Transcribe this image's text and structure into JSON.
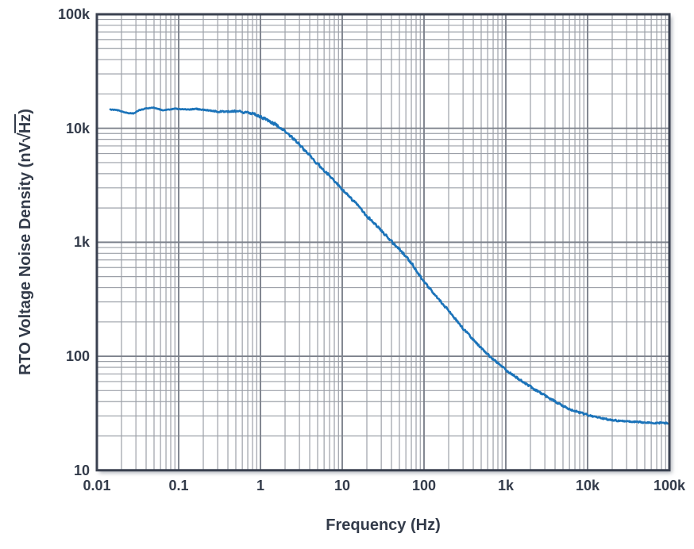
{
  "chart_data": {
    "type": "line",
    "title": "",
    "xlabel": "Frequency (Hz)",
    "ylabel": "RTO Voltage Noise Density (nV√Hz)",
    "ylabel_parts": {
      "prefix": "RTO Voltage Noise Density (nV",
      "radicand": "Hz",
      "suffix": ")"
    },
    "x_scale": "log",
    "y_scale": "log",
    "xlim": [
      0.01,
      100000
    ],
    "ylim": [
      10,
      100000
    ],
    "grid": {
      "major": true,
      "minor": true
    },
    "legend": "none",
    "x_ticks": [
      {
        "value": 0.01,
        "label": "0.01"
      },
      {
        "value": 0.1,
        "label": "0.1"
      },
      {
        "value": 1,
        "label": "1"
      },
      {
        "value": 10,
        "label": "10"
      },
      {
        "value": 100,
        "label": "100"
      },
      {
        "value": 1000,
        "label": "1k"
      },
      {
        "value": 10000,
        "label": "10k"
      },
      {
        "value": 100000,
        "label": "100k"
      }
    ],
    "y_ticks": [
      {
        "value": 10,
        "label": "10"
      },
      {
        "value": 100,
        "label": "100"
      },
      {
        "value": 1000,
        "label": "1k"
      },
      {
        "value": 10000,
        "label": "10k"
      },
      {
        "value": 100000,
        "label": "100k"
      }
    ],
    "series": [
      {
        "name": "RTO voltage noise density",
        "color": "#1b73b9",
        "points": [
          [
            0.0146,
            14600
          ],
          [
            0.017,
            14500
          ],
          [
            0.02,
            14100
          ],
          [
            0.024,
            13600
          ],
          [
            0.028,
            13500
          ],
          [
            0.033,
            14400
          ],
          [
            0.04,
            14900
          ],
          [
            0.048,
            15200
          ],
          [
            0.055,
            14800
          ],
          [
            0.065,
            14400
          ],
          [
            0.075,
            14600
          ],
          [
            0.09,
            14900
          ],
          [
            0.105,
            14700
          ],
          [
            0.13,
            14600
          ],
          [
            0.16,
            14800
          ],
          [
            0.2,
            14500
          ],
          [
            0.25,
            14300
          ],
          [
            0.3,
            14000
          ],
          [
            0.4,
            14000
          ],
          [
            0.5,
            14100
          ],
          [
            0.6,
            13900
          ],
          [
            0.7,
            13700
          ],
          [
            0.85,
            13300
          ],
          [
            1.0,
            12600
          ],
          [
            1.2,
            11900
          ],
          [
            1.5,
            10900
          ],
          [
            2.0,
            9400
          ],
          [
            2.5,
            8200
          ],
          [
            3.0,
            7200
          ],
          [
            4.0,
            5800
          ],
          [
            5.0,
            4900
          ],
          [
            6.0,
            4300
          ],
          [
            7.0,
            3850
          ],
          [
            8.5,
            3300
          ],
          [
            10,
            2900
          ],
          [
            12,
            2550
          ],
          [
            15,
            2150
          ],
          [
            20,
            1700
          ],
          [
            25,
            1450
          ],
          [
            30,
            1270
          ],
          [
            40,
            1020
          ],
          [
            50,
            870
          ],
          [
            70,
            660
          ],
          [
            100,
            450
          ],
          [
            150,
            320
          ],
          [
            200,
            250
          ],
          [
            300,
            175
          ],
          [
            500,
            118
          ],
          [
            700,
            94
          ],
          [
            1000,
            76
          ],
          [
            1500,
            62
          ],
          [
            2000,
            54
          ],
          [
            3000,
            45
          ],
          [
            5000,
            36.5
          ],
          [
            7000,
            33
          ],
          [
            10000,
            30.5
          ],
          [
            15000,
            28.5
          ],
          [
            20000,
            27.5
          ],
          [
            30000,
            26.8
          ],
          [
            50000,
            26.3
          ],
          [
            70000,
            26.1
          ],
          [
            100000,
            25.9
          ]
        ]
      }
    ]
  },
  "style": {
    "background": "#ffffff",
    "text_color": "#333b4a",
    "frame_color": "#3a4150",
    "minor_grid_color": "#9ca0a8",
    "major_grid_color": "#7d828c",
    "curve_color": "#1b73b9"
  }
}
